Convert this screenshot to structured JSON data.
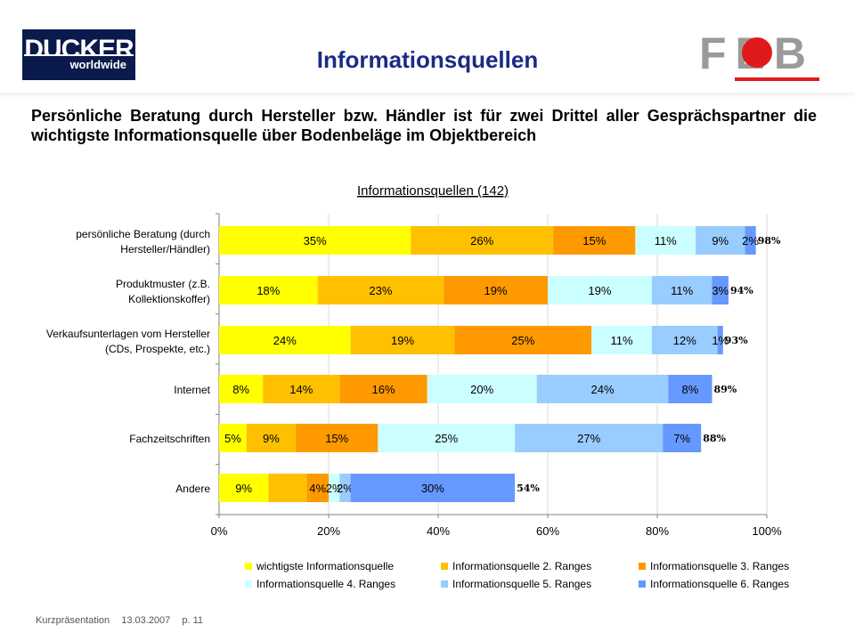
{
  "header": {
    "title": "Informationsquellen",
    "ducker_logo": {
      "brand": "DUCKER",
      "sub": "worldwide"
    },
    "feb_logo": {
      "text": "FEB"
    }
  },
  "headline": "Persönliche Beratung durch Hersteller bzw. Händler ist für zwei Drittel aller Gesprächspartner die wichtigste Informationsquelle über Bodenbeläge im Objektbereich",
  "footer": {
    "label": "Kurzpräsentation",
    "date": "13.03.2007",
    "page": "p. 11"
  },
  "colors": {
    "title": "#1a2b85",
    "series": [
      "#ffff00",
      "#ffc000",
      "#ff9900",
      "#ccffff",
      "#99ccff",
      "#6699ff"
    ],
    "feb_gray": "#9a9a9a",
    "feb_red": "#e01a1a"
  },
  "chart_data": {
    "type": "bar",
    "orientation": "horizontal",
    "stacked": true,
    "title": "Informationsquellen (142)",
    "categories": [
      [
        "persönliche Beratung (durch",
        "Hersteller/Händler)"
      ],
      [
        "Produktmuster (z.B.",
        "Kollektionskoffer)"
      ],
      [
        "Verkaufsunterlagen vom Hersteller",
        "(CDs, Prospekte, etc.)"
      ],
      [
        "Internet"
      ],
      [
        "Fachzeitschriften"
      ],
      [
        "Andere"
      ]
    ],
    "series": [
      {
        "name": "wichtigste Informationsquelle",
        "values": [
          35,
          18,
          24,
          8,
          5,
          9
        ]
      },
      {
        "name": "Informationsquelle 2. Ranges",
        "values": [
          26,
          23,
          19,
          14,
          9,
          7
        ]
      },
      {
        "name": "Informationsquelle 3. Ranges",
        "values": [
          15,
          19,
          25,
          16,
          15,
          4
        ]
      },
      {
        "name": "Informationsquelle 4. Ranges",
        "values": [
          11,
          19,
          11,
          20,
          25,
          2
        ]
      },
      {
        "name": "Informationsquelle 5. Ranges",
        "values": [
          9,
          11,
          12,
          24,
          27,
          2
        ]
      },
      {
        "name": "Informationsquelle 6. Ranges",
        "values": [
          2,
          3,
          1,
          8,
          7,
          30
        ]
      }
    ],
    "data_labels": [
      [
        "35%",
        "26%",
        "15%",
        "11%",
        "9%",
        "2%"
      ],
      [
        "18%",
        "23%",
        "19%",
        "19%",
        "11%",
        "3%"
      ],
      [
        "24%",
        "19%",
        "25%",
        "11%",
        "12%",
        "1%"
      ],
      [
        "8%",
        "14%",
        "16%",
        "20%",
        "24%",
        "8%"
      ],
      [
        "5%",
        "9%",
        "15%",
        "25%",
        "27%",
        "7%"
      ],
      [
        "9%",
        "",
        "4%",
        "2%",
        "2%",
        "30%"
      ]
    ],
    "totals": [
      "98%",
      "94%",
      "93%",
      "89%",
      "88%",
      "54%"
    ],
    "xlim": [
      0,
      100
    ],
    "xticks": [
      "0%",
      "20%",
      "40%",
      "60%",
      "80%",
      "100%"
    ],
    "grid": "vertical",
    "legend_position": "bottom"
  }
}
